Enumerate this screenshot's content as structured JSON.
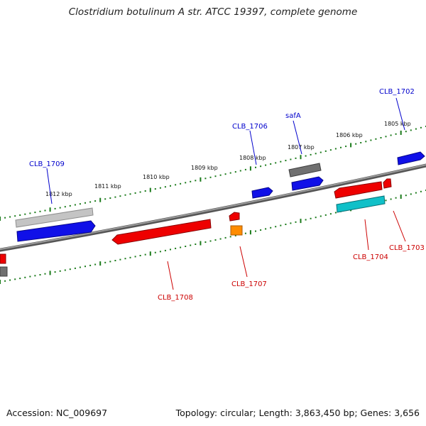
{
  "title": "Clostridium botulinum A str. ATCC 19397, complete genome",
  "footer": {
    "accession": "Accession: NC_009697",
    "summary": "Topology: circular; Length: 3,863,450 bp; Genes: 3,656"
  },
  "colors": {
    "backbone": "#7a7a7a",
    "scale_dots": "#1a7a1a",
    "forward_gene": "#1010e8",
    "reverse_gene": "#ee0000",
    "pseudo_gene": "#777777",
    "light_gene": "#b8b8b8",
    "cyan_feature": "#10c0c8",
    "orange_feature": "#ff8c00",
    "label_forward": "#0000cc",
    "label_reverse": "#cc0000"
  },
  "ticks": [
    "1812 kbp",
    "1811 kbp",
    "1810 kbp",
    "1809 kbp",
    "1808 kbp",
    "1807 kbp",
    "1806 kbp",
    "1805 kbp"
  ],
  "gene_labels": {
    "clb1702": "CLB_1702",
    "clb1706": "CLB_1706",
    "safA": "safA",
    "clb1709": "CLB_1709",
    "clb1708": "CLB_1708",
    "clb1707": "CLB_1707",
    "clb1704": "CLB_1704",
    "clb1703": "CLB_1703"
  }
}
